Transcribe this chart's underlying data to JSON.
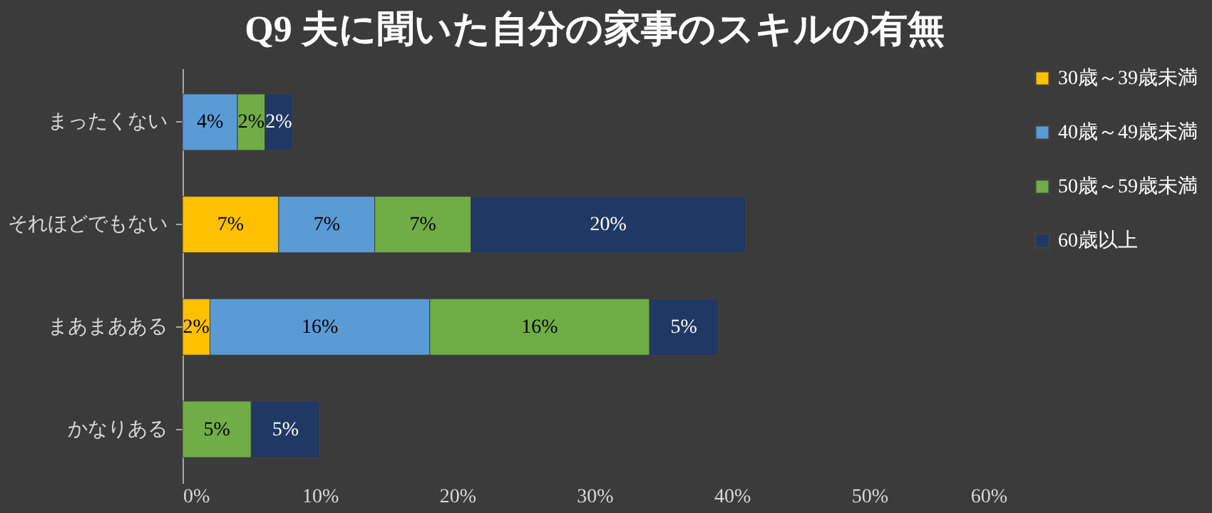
{
  "chart_data": {
    "type": "bar",
    "orientation": "horizontal",
    "stacked": true,
    "title": "Q9 夫に聞いた自分の家事のスキルの有無",
    "categories": [
      "まったくない",
      "それほどでもない",
      "まあまあある",
      "かなりある"
    ],
    "series": [
      {
        "name": "30歳～39歳未満",
        "color": "#ffc000",
        "values": [
          null,
          7,
          2,
          null
        ],
        "value_labels": [
          null,
          "7%",
          "2%",
          null
        ]
      },
      {
        "name": "40歳～49歳未満",
        "color": "#5b9bd5",
        "values": [
          4,
          7,
          16,
          null
        ],
        "value_labels": [
          "4%",
          "7%",
          "16%",
          null
        ]
      },
      {
        "name": "50歳～59歳未満",
        "color": "#70ad47",
        "values": [
          2,
          7,
          16,
          5
        ],
        "value_labels": [
          "2%",
          "7%",
          "16%",
          "5%"
        ]
      },
      {
        "name": "60歳以上",
        "color": "#203864",
        "values": [
          2,
          20,
          5,
          5
        ],
        "value_labels": [
          "2%",
          "20%",
          "5%",
          "5%"
        ]
      }
    ],
    "xlim": [
      0,
      60
    ],
    "xticks": [
      {
        "value": 0,
        "label": "0%"
      },
      {
        "value": 10,
        "label": "10%"
      },
      {
        "value": 20,
        "label": "20%"
      },
      {
        "value": 30,
        "label": "30%"
      },
      {
        "value": 40,
        "label": "40%"
      },
      {
        "value": 50,
        "label": "50%"
      },
      {
        "value": 60,
        "label": "60%"
      }
    ],
    "grid": false,
    "legend": "right"
  }
}
